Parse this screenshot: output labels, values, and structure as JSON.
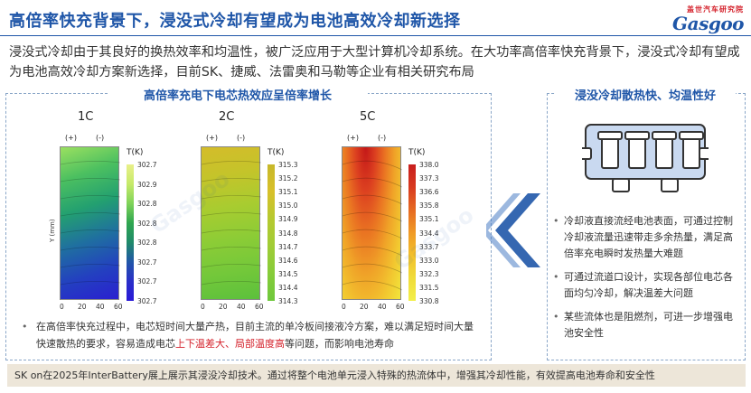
{
  "title": "高倍率快充背景下，浸没式冷却有望成为电池高效冷却新选择",
  "logo": {
    "top": "盖世汽车研究院",
    "main": "Gasgoo"
  },
  "intro": "浸没式冷却由于其良好的换热效率和均温性，被广泛应用于大型计算机冷却系统。在大功率高倍率快充背景下，浸没式冷却有望成为电池高效冷却方案新选择，目前SK、捷威、法雷奥和马勒等企业有相关研究布局",
  "left_panel": {
    "heading": "高倍率充电下电芯热效应呈倍率增长",
    "bullet_a": "在高倍率快充过程中，电芯短时间大量产热，目前主流的单冷板间接液冷方案，难以满足短时间大量快速散热的要求，容易造成电芯",
    "bullet_red": "上下温差大、局部温度高",
    "bullet_b": "等问题，而影响电池寿命",
    "plots": [
      {
        "label": "1C",
        "plus": "(+)",
        "minus": "(-)",
        "tlabel": "T(K)",
        "ylabel": "Y (mm)",
        "ticks": [
          "302.7",
          "302.9",
          "302.8",
          "302.8",
          "302.8",
          "302.7",
          "302.7",
          "302.7"
        ],
        "colorbar": [
          "#e9f08a",
          "#c6ea6a",
          "#7fd35a",
          "#2fa650",
          "#1f8a6a",
          "#2156a8",
          "#2a2fc8",
          "#2a1ad8"
        ],
        "field": [
          "#9be060",
          "#4cc060",
          "#23a070",
          "#1f6fa0",
          "#2340c0",
          "#2a20d0"
        ],
        "xticks": [
          "0",
          "20",
          "40",
          "60"
        ]
      },
      {
        "label": "2C",
        "plus": "(+)",
        "minus": "(-)",
        "tlabel": "T(K)",
        "ticks": [
          "315.3",
          "315.2",
          "315.1",
          "315.0",
          "314.9",
          "314.8",
          "314.7",
          "314.6",
          "314.5",
          "314.4",
          "314.3"
        ],
        "colorbar": [
          "#c7b82a",
          "#d8c02a",
          "#b6c930",
          "#a0cc36",
          "#86cc3a",
          "#6ec83c"
        ],
        "field": [
          "#d4bc2a",
          "#c4c42a",
          "#a8cc30",
          "#8ccc36",
          "#74c83a",
          "#5cc03c"
        ],
        "xticks": [
          "0",
          "20",
          "40",
          "60"
        ]
      },
      {
        "label": "5C",
        "plus": "(+)",
        "minus": "(-)",
        "tlabel": "T(K)",
        "ticks": [
          "338.0",
          "337.3",
          "336.6",
          "335.8",
          "335.1",
          "334.4",
          "333.7",
          "333.0",
          "332.3",
          "331.5",
          "330.8"
        ],
        "colorbar": [
          "#c81e1e",
          "#d83a20",
          "#e66a22",
          "#f09a26",
          "#f2c02c",
          "#f0dc3a",
          "#f3ef4a"
        ],
        "field": [
          "#c41818",
          "#dc4020",
          "#ea7422",
          "#f0a428",
          "#f2c830",
          "#f2e63c"
        ],
        "xticks": [
          "0",
          "20",
          "40",
          "60"
        ]
      }
    ]
  },
  "right_panel": {
    "heading": "浸没冷却散热快、均温性好",
    "bullets": [
      "冷却液直接流经电池表面，可通过控制冷却液流量迅速带走多余热量，满足高倍率充电瞬时发热量大难题",
      "可通过流道口设计，实现各部位电芯各面均匀冷却，解决温差大问题",
      "某些流体也是阻燃剂，可进一步增强电池安全性"
    ]
  },
  "footer": "SK on在2025年InterBattery展上展示其浸没冷却技术。通过将整个电池单元浸入特殊的热流体中，增强其冷却性能，有效提高电池寿命和安全性",
  "colors": {
    "brand": "#1f56a8",
    "accent_red": "#d4202a",
    "footer_bg": "#ede6d9",
    "arrow": "#1f56a8"
  }
}
